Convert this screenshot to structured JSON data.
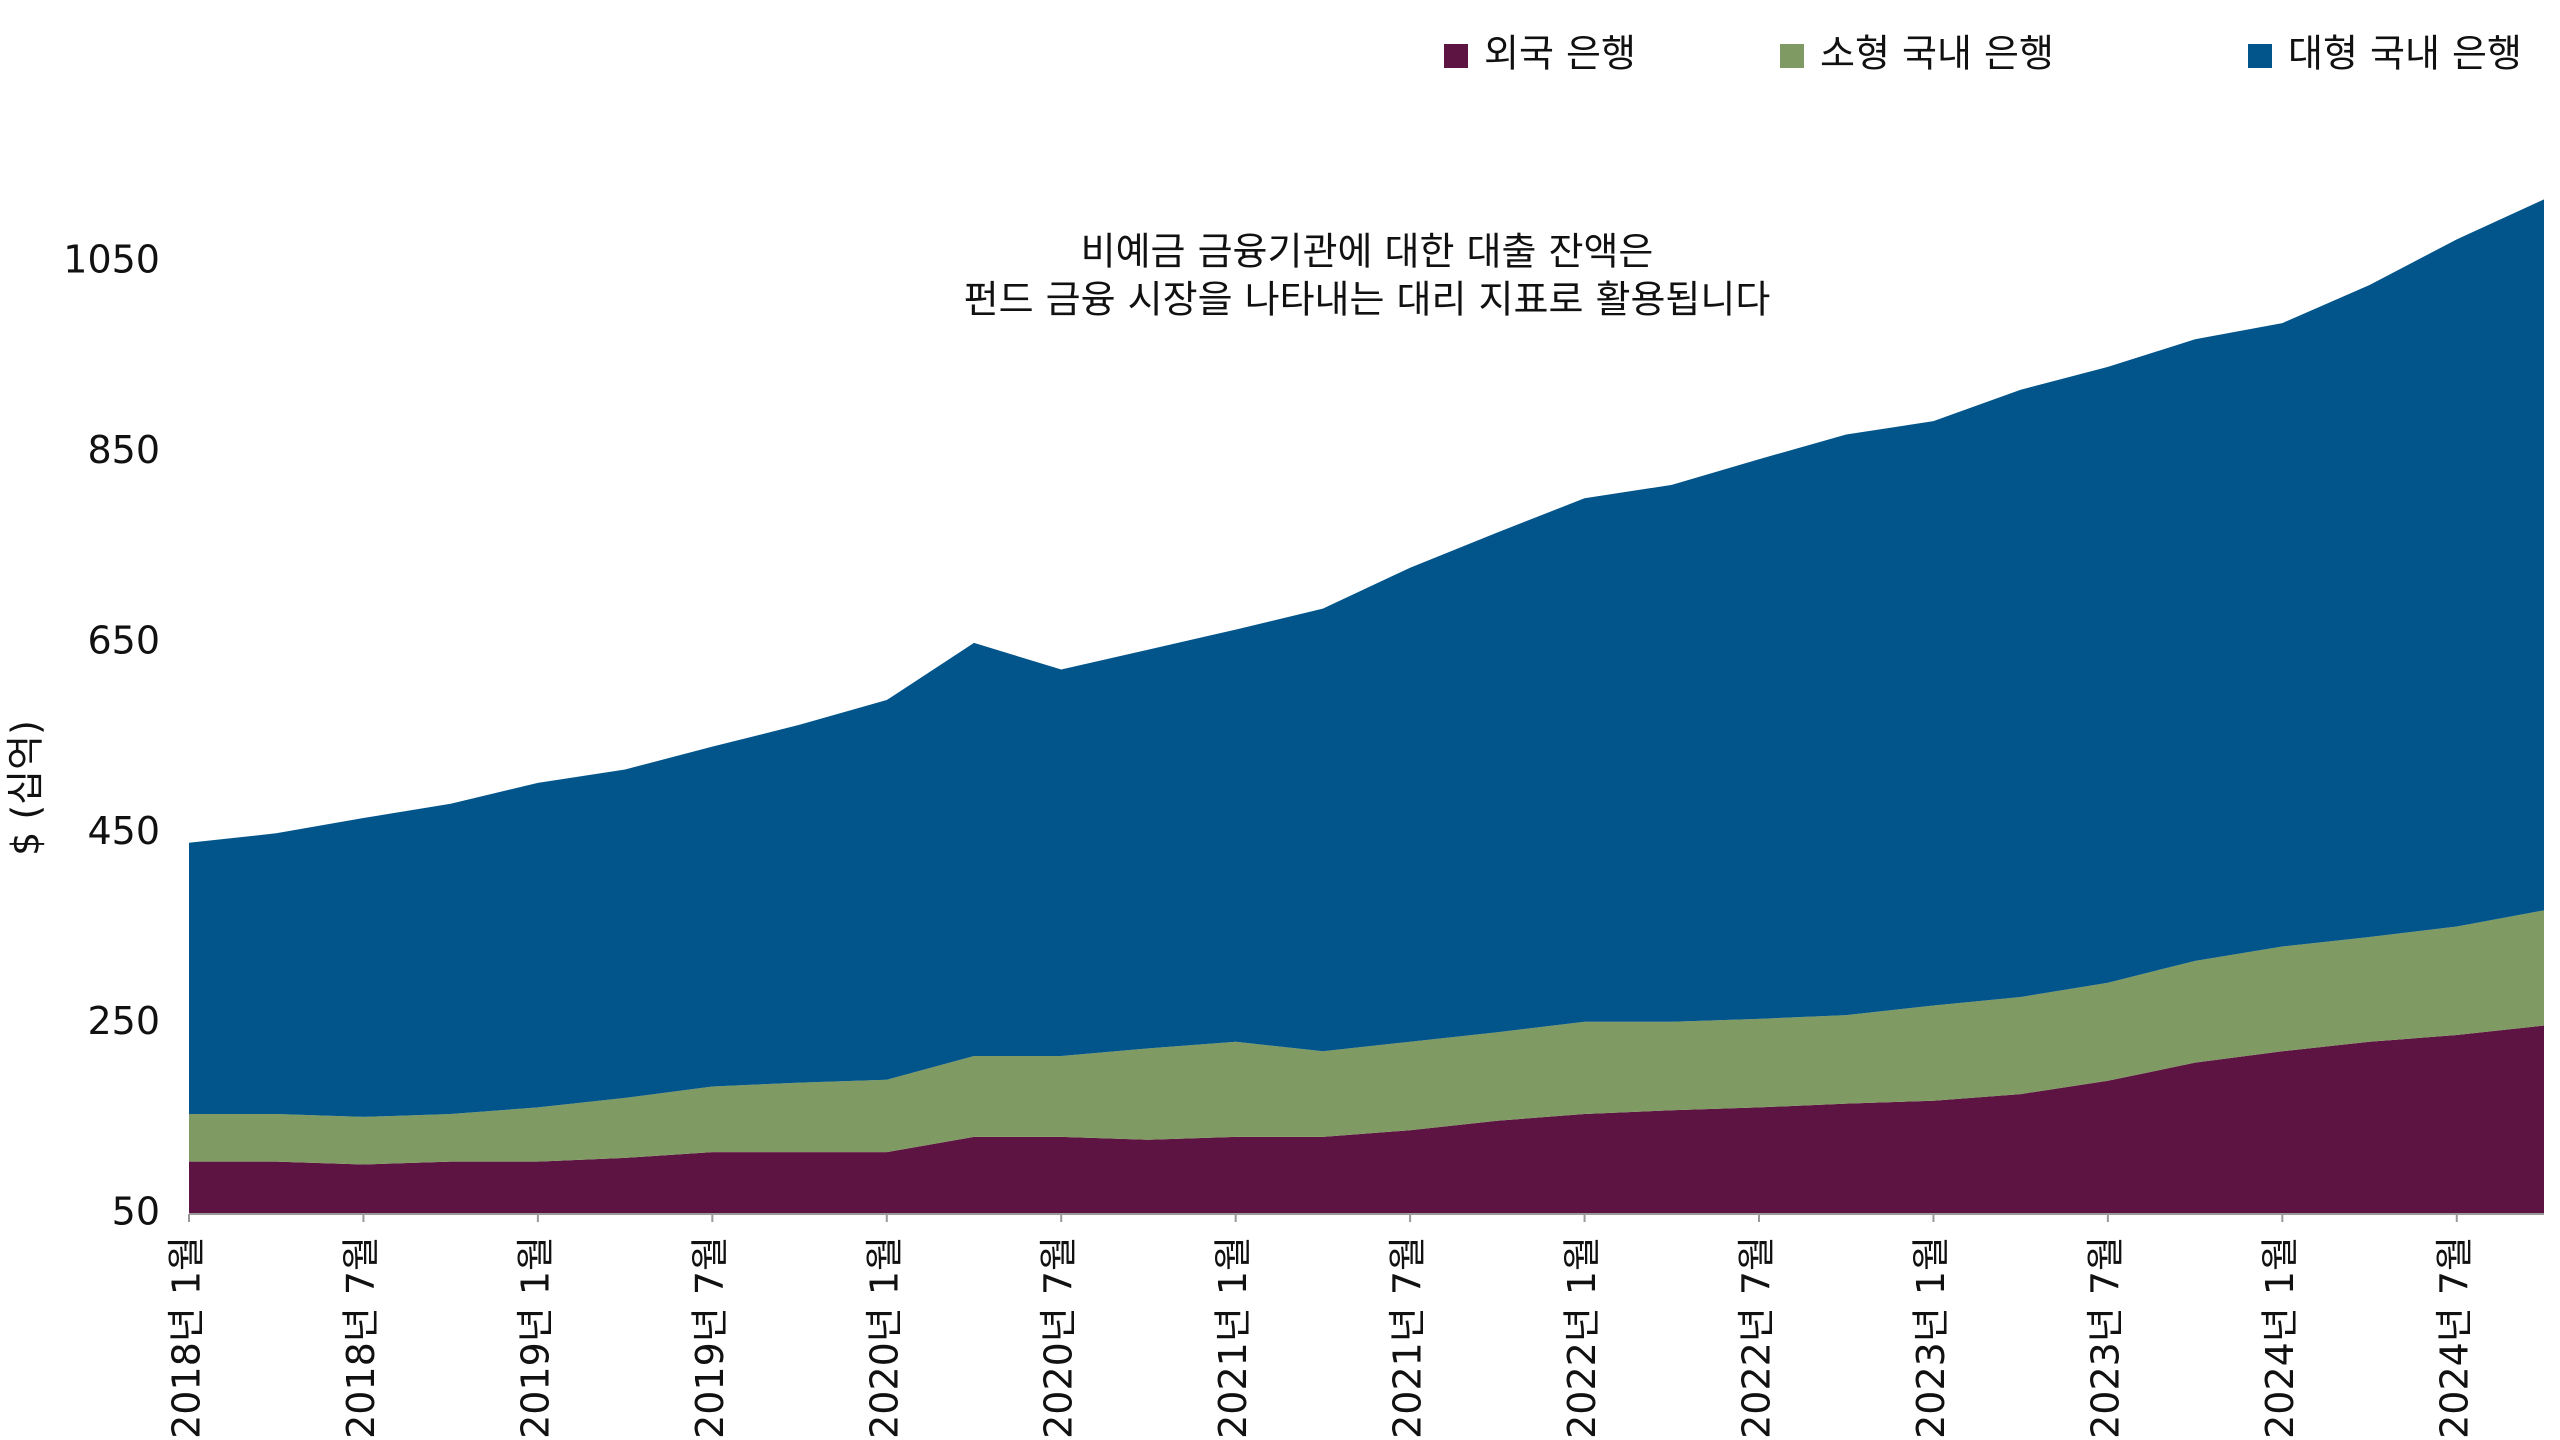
{
  "chart_data": {
    "type": "stacked-area",
    "annotation": [
      "비예금 금융기관에 대한 대출 잔액은",
      "펀드 금융 시장을 나타내는 대리 지표로 활용됩니다"
    ],
    "y_label": "$ (십억)",
    "categories": [
      "2018년 1월",
      null,
      "2018년 7월",
      null,
      "2019년 1월",
      null,
      "2019년 7월",
      null,
      "2020년 1월",
      null,
      "2020년 7월",
      null,
      "2021년 1월",
      null,
      "2021년 7월",
      null,
      "2022년 1월",
      null,
      "2022년 7월",
      null,
      "2023년 1월",
      null,
      "2023년 7월",
      null,
      "2024년 1월",
      null,
      "2024년 7월",
      null
    ],
    "series": [
      {
        "name": "외국 은행",
        "color": "#5e1442",
        "values": [
          105,
          105,
          102,
          105,
          105,
          109,
          115,
          115,
          115,
          131,
          131,
          128,
          131,
          131,
          138,
          148,
          155,
          159,
          162,
          166,
          169,
          176,
          190,
          209,
          221,
          231,
          238,
          248
        ]
      },
      {
        "name": "소형 국내 은행",
        "color": "#7f9a62",
        "values": [
          50,
          50,
          50,
          50,
          57,
          63,
          69,
          73,
          76,
          85,
          85,
          96,
          100,
          90,
          93,
          93,
          97,
          93,
          93,
          93,
          100,
          102,
          103,
          107,
          110,
          110,
          114,
          121
        ]
      },
      {
        "name": "대형 국내 은행",
        "color": "#02558a",
        "values": [
          285,
          295,
          314,
          326,
          341,
          345,
          357,
          376,
          399,
          434,
          406,
          419,
          433,
          465,
          498,
          525,
          550,
          564,
          588,
          610,
          614,
          638,
          647,
          653,
          655,
          685,
          722,
          747
        ]
      }
    ],
    "ylim": [
      50,
      1150
    ],
    "yticks": [
      50,
      250,
      450,
      650,
      850,
      1050
    ],
    "legend": "top-right"
  }
}
